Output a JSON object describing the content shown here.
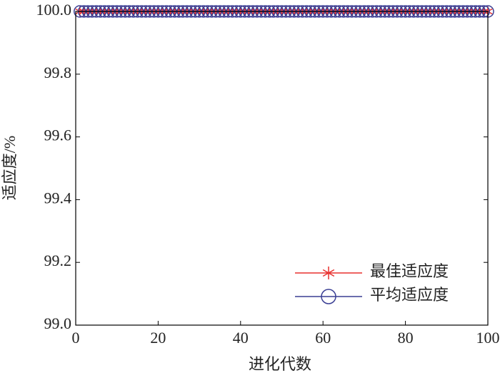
{
  "chart_data": {
    "type": "line",
    "xlabel": "进化代数",
    "ylabel": "适应度/%",
    "x": [
      1,
      2,
      3,
      4,
      5,
      6,
      7,
      8,
      9,
      10,
      11,
      12,
      13,
      14,
      15,
      16,
      17,
      18,
      19,
      20,
      21,
      22,
      23,
      24,
      25,
      26,
      27,
      28,
      29,
      30,
      31,
      32,
      33,
      34,
      35,
      36,
      37,
      38,
      39,
      40,
      41,
      42,
      43,
      44,
      45,
      46,
      47,
      48,
      49,
      50,
      51,
      52,
      53,
      54,
      55,
      56,
      57,
      58,
      59,
      60,
      61,
      62,
      63,
      64,
      65,
      66,
      67,
      68,
      69,
      70,
      71,
      72,
      73,
      74,
      75,
      76,
      77,
      78,
      79,
      80,
      81,
      82,
      83,
      84,
      85,
      86,
      87,
      88,
      89,
      90,
      91,
      92,
      93,
      94,
      95,
      96,
      97,
      98,
      99,
      100
    ],
    "series": [
      {
        "name": "最佳适应度",
        "color": "#e8312f",
        "marker": "asterisk",
        "values": [
          100,
          100,
          100,
          100,
          100,
          100,
          100,
          100,
          100,
          100,
          100,
          100,
          100,
          100,
          100,
          100,
          100,
          100,
          100,
          100,
          100,
          100,
          100,
          100,
          100,
          100,
          100,
          100,
          100,
          100,
          100,
          100,
          100,
          100,
          100,
          100,
          100,
          100,
          100,
          100,
          100,
          100,
          100,
          100,
          100,
          100,
          100,
          100,
          100,
          100,
          100,
          100,
          100,
          100,
          100,
          100,
          100,
          100,
          100,
          100,
          100,
          100,
          100,
          100,
          100,
          100,
          100,
          100,
          100,
          100,
          100,
          100,
          100,
          100,
          100,
          100,
          100,
          100,
          100,
          100,
          100,
          100,
          100,
          100,
          100,
          100,
          100,
          100,
          100,
          100,
          100,
          100,
          100,
          100,
          100,
          100,
          100,
          100,
          100,
          100
        ]
      },
      {
        "name": "平均适应度",
        "color": "#3a3f94",
        "marker": "circle",
        "values": [
          100,
          100,
          100,
          100,
          100,
          100,
          100,
          100,
          100,
          100,
          100,
          100,
          100,
          100,
          100,
          100,
          100,
          100,
          100,
          100,
          100,
          100,
          100,
          100,
          100,
          100,
          100,
          100,
          100,
          100,
          100,
          100,
          100,
          100,
          100,
          100,
          100,
          100,
          100,
          100,
          100,
          100,
          100,
          100,
          100,
          100,
          100,
          100,
          100,
          100,
          100,
          100,
          100,
          100,
          100,
          100,
          100,
          100,
          100,
          100,
          100,
          100,
          100,
          100,
          100,
          100,
          100,
          100,
          100,
          100,
          100,
          100,
          100,
          100,
          100,
          100,
          100,
          100,
          100,
          100,
          100,
          100,
          100,
          100,
          100,
          100,
          100,
          100,
          100,
          100,
          100,
          100,
          100,
          100,
          100,
          100,
          100,
          100,
          100,
          100
        ]
      }
    ],
    "xlim": [
      0,
      100
    ],
    "xticks": [
      0,
      20,
      40,
      60,
      80,
      100
    ],
    "ylim": [
      99,
      100
    ],
    "yticks": [
      {
        "value": 99,
        "label": "99.0"
      },
      99.2,
      99.4,
      99.6,
      99.8,
      {
        "value": 100,
        "label": "100.0"
      }
    ],
    "legend": "lower right",
    "grid": false
  }
}
